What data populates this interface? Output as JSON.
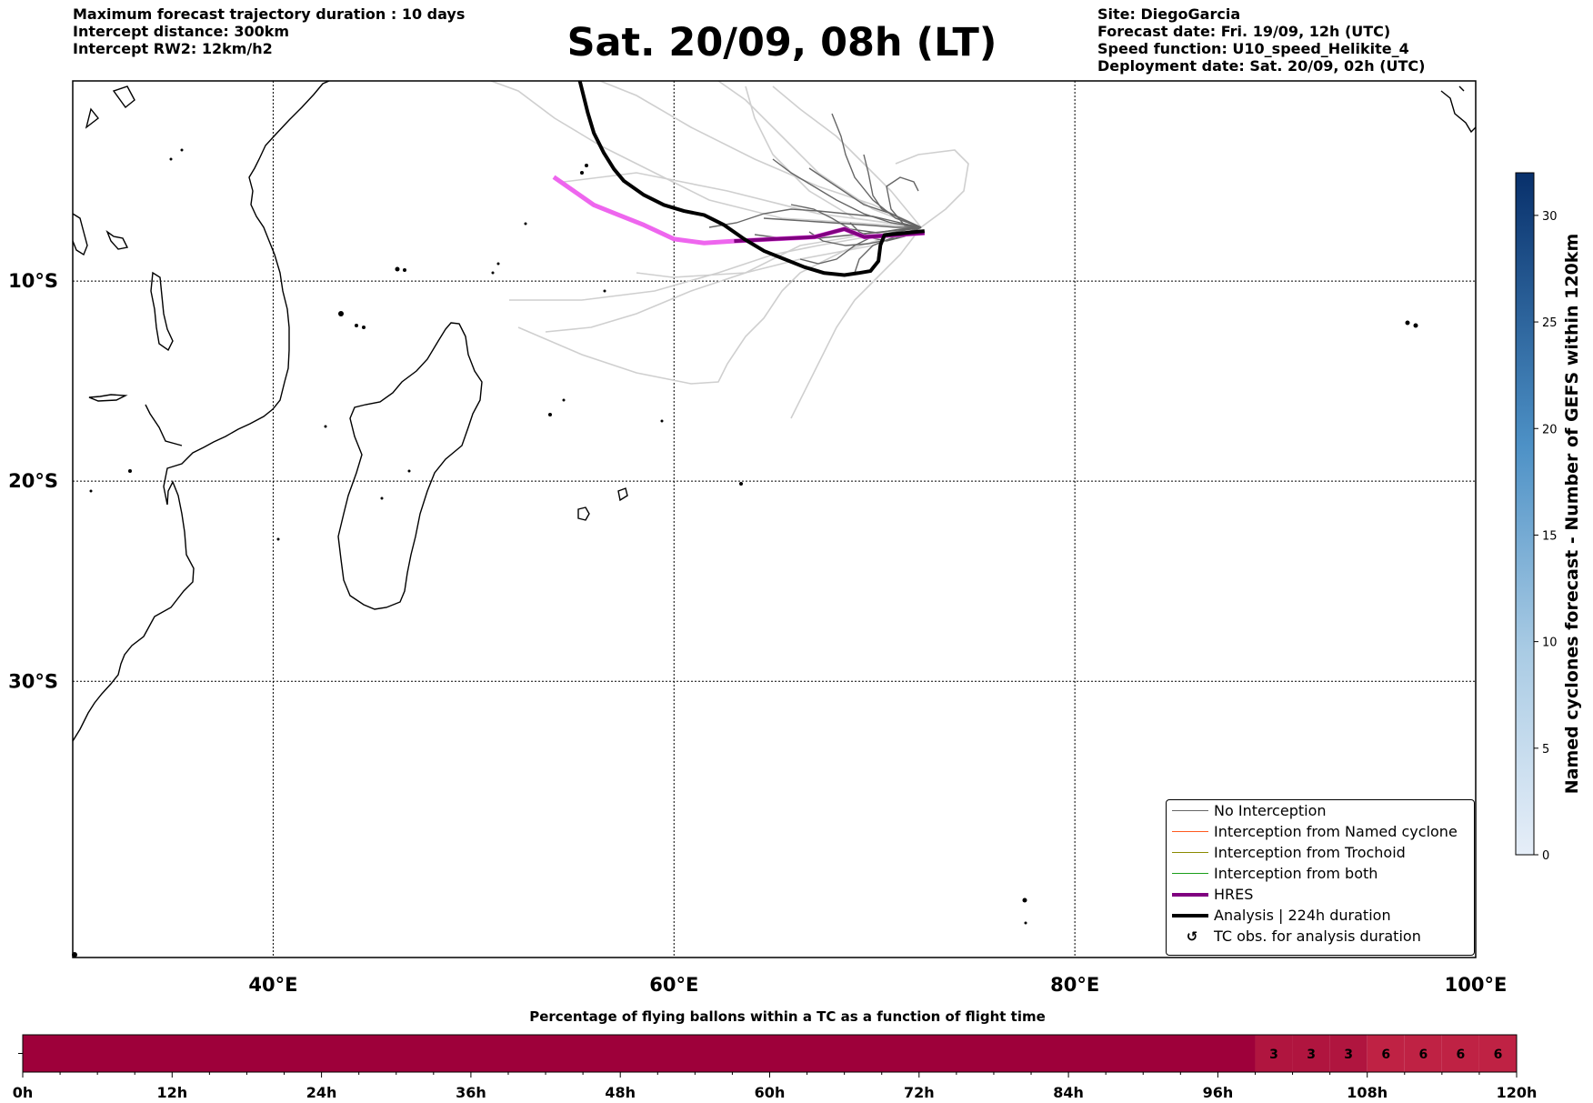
{
  "header_left": [
    "Maximum forecast trajectory duration : 10 days",
    "Intercept distance: 300km",
    "Intercept RW2: 12km/h2"
  ],
  "title": "Sat. 20/09, 08h (LT)",
  "header_right": [
    "Site: DiegoGarcia",
    "Forecast date: Fri. 19/09, 12h (UTC)",
    "Speed function: U10_speed_Helikite_4",
    "Deployment date: Sat. 20/09, 02h (UTC)"
  ],
  "map": {
    "lon_range": [
      30,
      100
    ],
    "lat_range": [
      -43.8,
      0
    ],
    "lon_ticks": [
      40,
      60,
      80,
      100
    ],
    "lon_tick_labels": [
      "40°E",
      "60°E",
      "80°E",
      "100°E"
    ],
    "lat_ticks": [
      -10,
      -20,
      -30
    ],
    "lat_tick_labels": [
      "10°S",
      "20°S",
      "30°S"
    ],
    "grid": true
  },
  "legend": {
    "items": [
      {
        "label": "No Interception",
        "color": "#666666"
      },
      {
        "label": "Interception from Named cyclone",
        "color": "#ff5a1f"
      },
      {
        "label": "Interception from Trochoid",
        "color": "#8b8b00"
      },
      {
        "label": "Interception from both",
        "color": "#1a9e1a"
      },
      {
        "label": "HRES",
        "color": "#800080"
      },
      {
        "label": "Analysis | 224h duration",
        "color": "#000000"
      },
      {
        "label": "TC obs. for analysis duration",
        "icon": "cyclone-icon",
        "glyph": "↺"
      }
    ],
    "placement": "lower-right"
  },
  "colorbar": {
    "label": "Named cyclones forecast - Number of GEFS within 120km",
    "ticks": [
      0,
      5,
      10,
      15,
      20,
      25,
      30
    ],
    "range": [
      0,
      32
    ],
    "colors": [
      "#e6eef8",
      "#08306b"
    ]
  },
  "flight_bar": {
    "title": "Percentage of flying ballons within a TC as a function of flight time",
    "ticks": [
      "0h",
      "12h",
      "24h",
      "36h",
      "48h",
      "60h",
      "72h",
      "84h",
      "96h",
      "108h",
      "120h"
    ],
    "segments": [
      {
        "from_h": 0,
        "to_h": 99,
        "value": 0,
        "color": "#9e003a"
      },
      {
        "from_h": 99,
        "to_h": 102,
        "value": 3,
        "color": "#b0153f"
      },
      {
        "from_h": 102,
        "to_h": 105,
        "value": 3,
        "color": "#b0153f"
      },
      {
        "from_h": 105,
        "to_h": 108,
        "value": 3,
        "color": "#b0153f"
      },
      {
        "from_h": 108,
        "to_h": 111,
        "value": 6,
        "color": "#bf2244"
      },
      {
        "from_h": 111,
        "to_h": 114,
        "value": 6,
        "color": "#bf2244"
      },
      {
        "from_h": 114,
        "to_h": 117,
        "value": 6,
        "color": "#bf2244"
      },
      {
        "from_h": 117,
        "to_h": 120,
        "value": 6,
        "color": "#bf2244"
      }
    ]
  },
  "chart_data": {
    "type": "line",
    "title": "Sat. 20/09, 08h (LT)",
    "xlabel": "",
    "ylabel": "",
    "xlim": [
      30,
      100
    ],
    "ylim": [
      -43.8,
      0
    ],
    "series": [
      {
        "name": "HRES",
        "color": "#800080",
        "x": [
          72.5,
          71,
          69.5,
          68.5,
          67,
          65,
          63,
          61.5,
          60,
          58.5,
          57,
          56,
          55,
          54
        ],
        "y": [
          -7.6,
          -7.7,
          -7.8,
          -7.4,
          -7.8,
          -7.9,
          -8.0,
          -8.1,
          -7.9,
          -7.2,
          -6.6,
          -6.2,
          -5.5,
          -4.8
        ]
      },
      {
        "name": "Analysis | 224h duration",
        "color": "#000000",
        "x": [
          72.5,
          71.5,
          70.5,
          70.3,
          70.2,
          69.8,
          69.2,
          68.5,
          67.5,
          66.5,
          65.5,
          64.5,
          63.5,
          62.5,
          61.5,
          60.5,
          59.5,
          58.5,
          57.5,
          57,
          56.5,
          56,
          55.7,
          55.5,
          55.3
        ],
        "y": [
          -7.5,
          -7.6,
          -7.7,
          -8.2,
          -9.0,
          -9.5,
          -9.6,
          -9.7,
          -9.6,
          -9.3,
          -8.9,
          -8.5,
          -7.9,
          -7.2,
          -6.7,
          -6.5,
          -6.2,
          -5.7,
          -5.0,
          -4.4,
          -3.6,
          -2.6,
          -1.6,
          -0.8,
          0
        ]
      }
    ]
  }
}
